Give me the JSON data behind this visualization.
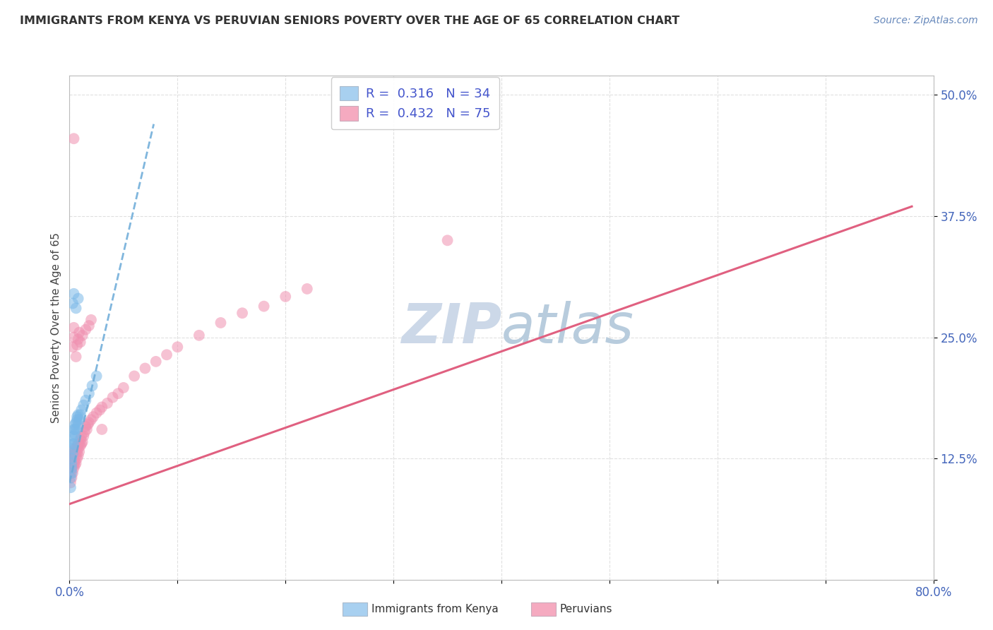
{
  "title": "IMMIGRANTS FROM KENYA VS PERUVIAN SENIORS POVERTY OVER THE AGE OF 65 CORRELATION CHART",
  "source": "Source: ZipAtlas.com",
  "ylabel": "Seniors Poverty Over the Age of 65",
  "xlim": [
    0.0,
    0.8
  ],
  "ylim": [
    0.0,
    0.52
  ],
  "kenya_R": 0.316,
  "kenya_N": 34,
  "peru_R": 0.432,
  "peru_N": 75,
  "kenya_color": "#a8d0f0",
  "peru_color": "#f5aac0",
  "kenya_scatter_color": "#7ab8e8",
  "peru_scatter_color": "#f090b0",
  "trendline_kenya_color": "#6aaad8",
  "trendline_peru_color": "#e06080",
  "watermark_color": "#ccd8e8",
  "legend_label_kenya": "Immigrants from Kenya",
  "legend_label_peru": "Peruvians",
  "background_color": "#ffffff",
  "grid_color": "#dddddd",
  "kenya_x": [
    0.001,
    0.001,
    0.002,
    0.002,
    0.002,
    0.002,
    0.003,
    0.003,
    0.003,
    0.003,
    0.004,
    0.004,
    0.004,
    0.005,
    0.005,
    0.005,
    0.006,
    0.006,
    0.007,
    0.007,
    0.008,
    0.008,
    0.009,
    0.01,
    0.011,
    0.013,
    0.015,
    0.018,
    0.021,
    0.025,
    0.003,
    0.004,
    0.006,
    0.008
  ],
  "kenya_y": [
    0.095,
    0.105,
    0.11,
    0.115,
    0.12,
    0.125,
    0.13,
    0.135,
    0.14,
    0.145,
    0.14,
    0.148,
    0.155,
    0.15,
    0.155,
    0.16,
    0.155,
    0.162,
    0.165,
    0.168,
    0.16,
    0.17,
    0.165,
    0.17,
    0.175,
    0.18,
    0.185,
    0.192,
    0.2,
    0.21,
    0.285,
    0.295,
    0.28,
    0.29
  ],
  "peru_x": [
    0.001,
    0.001,
    0.001,
    0.002,
    0.002,
    0.002,
    0.002,
    0.003,
    0.003,
    0.003,
    0.003,
    0.004,
    0.004,
    0.004,
    0.005,
    0.005,
    0.005,
    0.005,
    0.006,
    0.006,
    0.006,
    0.007,
    0.007,
    0.007,
    0.008,
    0.008,
    0.008,
    0.009,
    0.009,
    0.01,
    0.01,
    0.011,
    0.011,
    0.012,
    0.013,
    0.014,
    0.015,
    0.016,
    0.017,
    0.018,
    0.02,
    0.022,
    0.025,
    0.028,
    0.03,
    0.035,
    0.04,
    0.045,
    0.05,
    0.06,
    0.07,
    0.08,
    0.09,
    0.1,
    0.12,
    0.14,
    0.16,
    0.18,
    0.2,
    0.22,
    0.003,
    0.004,
    0.004,
    0.006,
    0.007,
    0.008,
    0.009,
    0.01,
    0.012,
    0.015,
    0.018,
    0.02,
    0.03,
    0.35,
    0.004
  ],
  "peru_y": [
    0.1,
    0.11,
    0.12,
    0.105,
    0.115,
    0.12,
    0.125,
    0.11,
    0.118,
    0.125,
    0.13,
    0.115,
    0.12,
    0.128,
    0.118,
    0.122,
    0.13,
    0.135,
    0.12,
    0.128,
    0.135,
    0.125,
    0.132,
    0.138,
    0.128,
    0.135,
    0.14,
    0.132,
    0.14,
    0.138,
    0.145,
    0.14,
    0.148,
    0.142,
    0.148,
    0.152,
    0.158,
    0.155,
    0.16,
    0.162,
    0.165,
    0.168,
    0.172,
    0.175,
    0.178,
    0.182,
    0.188,
    0.192,
    0.198,
    0.21,
    0.218,
    0.225,
    0.232,
    0.24,
    0.252,
    0.265,
    0.275,
    0.282,
    0.292,
    0.3,
    0.24,
    0.25,
    0.26,
    0.23,
    0.242,
    0.248,
    0.255,
    0.245,
    0.252,
    0.258,
    0.262,
    0.268,
    0.155,
    0.35,
    0.455
  ],
  "kenya_trend_x": [
    0.0,
    0.078
  ],
  "kenya_trend_y": [
    0.1,
    0.47
  ],
  "peru_trend_x": [
    0.0,
    0.78
  ],
  "peru_trend_y": [
    0.078,
    0.385
  ]
}
